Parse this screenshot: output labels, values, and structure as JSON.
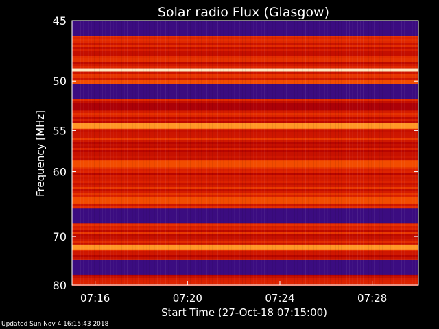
{
  "chart_data": {
    "type": "heatmap",
    "title": "Solar radio Flux (Glasgow)",
    "xlabel": "Start Time (27-Oct-18 07:15:00)",
    "ylabel": "Frequency [MHz]",
    "y_ticks": [
      45,
      50,
      55,
      60,
      70,
      80
    ],
    "y_range": [
      45,
      80
    ],
    "y_scale": "reciprocal",
    "x_ticks": [
      "07:16",
      "07:20",
      "07:24",
      "07:28"
    ],
    "x_range": [
      "07:15:00",
      "07:30:00"
    ],
    "colormap": [
      "#000000",
      "#2a0a86",
      "#6a1070",
      "#b00000",
      "#dd2200",
      "#ff6600",
      "#ffb840",
      "#ffffff"
    ],
    "frequency_bands": [
      {
        "freq": 45.5,
        "level": "low"
      },
      {
        "freq": 49.0,
        "level": "peak"
      },
      {
        "freq": 50.2,
        "level": "medium-high"
      },
      {
        "freq": 51.0,
        "level": "low"
      },
      {
        "freq": 52.5,
        "level": "medium-low"
      },
      {
        "freq": 54.5,
        "level": "high"
      },
      {
        "freq": 59.0,
        "level": "medium-high"
      },
      {
        "freq": 64.0,
        "level": "medium-high"
      },
      {
        "freq": 66.5,
        "level": "low"
      },
      {
        "freq": 72.0,
        "level": "high"
      },
      {
        "freq": 76.0,
        "level": "low"
      }
    ]
  },
  "footer": {
    "updated": "Updated Sun Nov  4 16:15:43 2018"
  }
}
